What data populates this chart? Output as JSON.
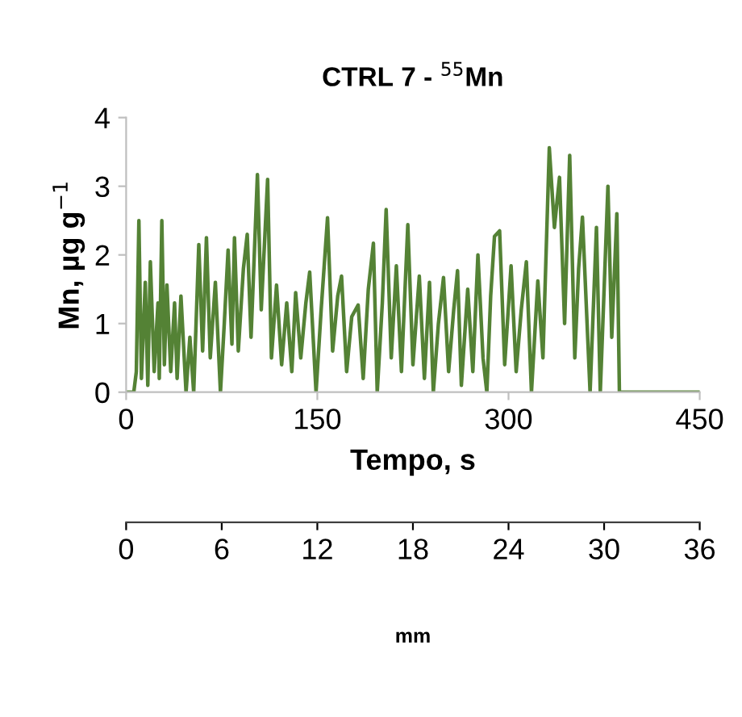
{
  "chart_data": {
    "type": "line",
    "title": "CTRL 7 - $^{55}$Mn",
    "xlabel": "Tempo, s",
    "ylabel": "Mn, µg g$^{−1}$",
    "x2label": "mm",
    "xlim": [
      0,
      450
    ],
    "xticks": [
      0,
      150,
      300,
      450
    ],
    "ylim": [
      0,
      4
    ],
    "yticks": [
      0,
      1,
      2,
      3,
      4
    ],
    "x2lim": [
      0,
      36
    ],
    "x2ticks": [
      0,
      6,
      12,
      18,
      24,
      30,
      36
    ],
    "grid": false,
    "legend": false,
    "marker": "none",
    "line_style": "solid",
    "series": [
      {
        "color": "#548235",
        "x": [
          0,
          6,
          8,
          10,
          12,
          15,
          17,
          19,
          22,
          25,
          26,
          28,
          30,
          32,
          35,
          38,
          40,
          43,
          47,
          50,
          53,
          57,
          60,
          63,
          66,
          70,
          74,
          77,
          80,
          83,
          85,
          88,
          92,
          95,
          98,
          103,
          106,
          111,
          114,
          118,
          122,
          126,
          130,
          133,
          137,
          141,
          144,
          149,
          153,
          158,
          162,
          166,
          169,
          173,
          177,
          182,
          186,
          190,
          194,
          197,
          201,
          204,
          208,
          212,
          216,
          221,
          225,
          230,
          234,
          238,
          241,
          245,
          249,
          253,
          257,
          260,
          263,
          268,
          272,
          276,
          280,
          283,
          286,
          289,
          293,
          297,
          302,
          306,
          310,
          314,
          318,
          323,
          327,
          332,
          336,
          340,
          344,
          348,
          352,
          355,
          358,
          364,
          369,
          372,
          375,
          378,
          381,
          385,
          387,
          450
        ],
        "values": [
          0,
          0,
          0.3,
          2.5,
          0.2,
          1.6,
          0.1,
          1.9,
          0.3,
          1.3,
          0.2,
          2.5,
          0.4,
          1.56,
          0.3,
          1.3,
          0.2,
          1.4,
          0,
          0.8,
          0,
          2.15,
          0.6,
          2.25,
          0.5,
          1.6,
          0,
          1.0,
          2.07,
          0.7,
          2.25,
          0.6,
          1.8,
          2.3,
          0.8,
          3.17,
          1.2,
          3.1,
          0.5,
          1.56,
          0.4,
          1.3,
          0.3,
          1.45,
          0.5,
          1.3,
          1.75,
          0,
          1.2,
          2.54,
          0.6,
          1.4,
          1.69,
          0.3,
          1.1,
          1.27,
          0.2,
          1.5,
          2.17,
          0,
          1.3,
          2.66,
          0.5,
          1.84,
          0.3,
          2.44,
          0.4,
          1.69,
          0.2,
          1.6,
          0,
          1.0,
          1.67,
          0.3,
          1.2,
          1.77,
          0.1,
          1.5,
          0.3,
          2.0,
          0.5,
          0,
          1.4,
          2.27,
          2.35,
          0.4,
          1.84,
          0.3,
          1.2,
          1.9,
          0,
          1.62,
          0.5,
          3.56,
          2.4,
          3.13,
          1.0,
          3.45,
          0.5,
          1.8,
          2.55,
          0,
          2.4,
          0,
          1.5,
          3.0,
          0.8,
          2.6,
          0,
          0
        ]
      }
    ]
  }
}
